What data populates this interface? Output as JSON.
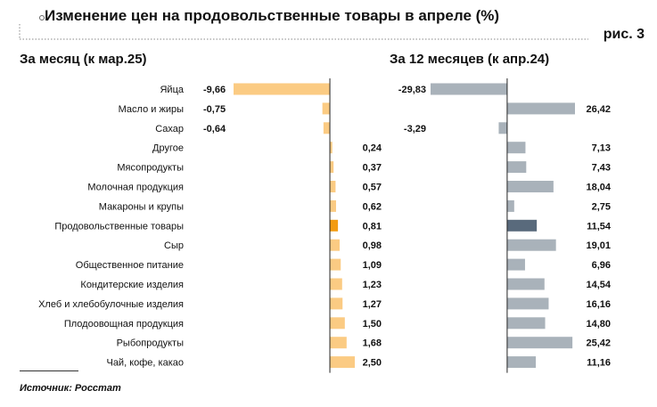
{
  "title": "Изменение цен на продовольственные товары в апреле (%)",
  "figure_label": "рис. 3",
  "source": "Источник: Росстат",
  "colors": {
    "left_bar": "#FBCB83",
    "left_highlight": "#F39C12",
    "right_bar": "#A9B2BA",
    "right_highlight": "#596A7C",
    "axis": "#222222",
    "dotted": "#888888"
  },
  "chart_data": [
    {
      "type": "bar",
      "orientation": "horizontal",
      "title": "За месяц (к мар.25)",
      "categories": [
        "Яйца",
        "Масло и жиры",
        "Сахар",
        "Другое",
        "Мясопродукты",
        "Молочная продукция",
        "Макароны и крупы",
        "Продовольственные товары",
        "Сыр",
        "Общественное питание",
        "Кондитерские изделия",
        "Хлеб и хлебобулочные изделия",
        "Плодоовощная продукция",
        "Рыбопродукты",
        "Чай, кофе, какао"
      ],
      "values": [
        -9.66,
        -0.75,
        -0.64,
        0.24,
        0.37,
        0.57,
        0.62,
        0.81,
        0.98,
        1.09,
        1.23,
        1.27,
        1.5,
        1.68,
        2.5
      ],
      "labels": [
        "-9,66",
        "-0,75",
        "-0,64",
        "0,24",
        "0,37",
        "0,57",
        "0,62",
        "0,81",
        "0,98",
        "1,09",
        "1,23",
        "1,27",
        "1,50",
        "1,68",
        "2,50"
      ],
      "highlight_index": 7,
      "xlim": [
        -9.66,
        2.5
      ]
    },
    {
      "type": "bar",
      "orientation": "horizontal",
      "title": "За 12 месяцев (к апр.24)",
      "categories": [
        "Яйца",
        "Масло и жиры",
        "Сахар",
        "Другое",
        "Мясопродукты",
        "Молочная продукция",
        "Макароны и крупы",
        "Продовольственные товары",
        "Сыр",
        "Общественное питание",
        "Кондитерские изделия",
        "Хлеб и хлебобулочные изделия",
        "Плодоовощная продукция",
        "Рыбопродукты",
        "Чай, кофе, какао"
      ],
      "values": [
        -29.83,
        26.42,
        -3.29,
        7.13,
        7.43,
        18.04,
        2.75,
        11.54,
        19.01,
        6.96,
        14.54,
        16.16,
        14.8,
        25.42,
        11.16
      ],
      "labels": [
        "-29,83",
        "26,42",
        "-3,29",
        "7,13",
        "7,43",
        "18,04",
        "2,75",
        "11,54",
        "19,01",
        "6,96",
        "14,54",
        "16,16",
        "14,80",
        "25,42",
        "11,16"
      ],
      "highlight_index": 7,
      "xlim": [
        -29.83,
        26.42
      ]
    }
  ]
}
